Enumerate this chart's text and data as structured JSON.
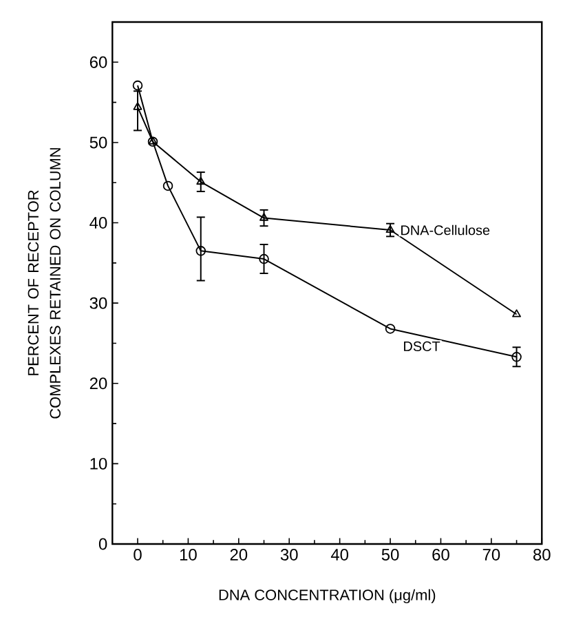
{
  "chart_data": {
    "type": "line",
    "xlabel": "DNA CONCENTRATION (μg/ml)",
    "ylabel": "PERCENT OF RECEPTOR COMPLEXES RETAINED ON COLUMN",
    "xlim": [
      -5,
      80
    ],
    "xticks": [
      0,
      10,
      20,
      30,
      40,
      50,
      60,
      70,
      80
    ],
    "ylim": [
      0,
      65
    ],
    "yticks": [
      0,
      10,
      20,
      30,
      40,
      50,
      60
    ],
    "grid": false,
    "legend": false,
    "line_style": "solid",
    "series": [
      {
        "name": "DNA-Cellulose",
        "color": "#000000",
        "marker": "triangle",
        "x": [
          0,
          3,
          12.5,
          25,
          50,
          75
        ],
        "values": [
          54.4,
          50.1,
          45.1,
          40.6,
          39.1,
          28.6
        ],
        "errors": [
          [
            51.5,
            56.4
          ],
          null,
          1.2,
          1,
          0.8,
          null
        ]
      },
      {
        "name": "DSCT",
        "color": "#000000",
        "marker": "circle",
        "x": [
          0,
          3,
          6,
          12.5,
          25,
          50,
          75
        ],
        "values": [
          57.1,
          50.1,
          44.6,
          36.5,
          35.5,
          26.8,
          23.3
        ],
        "errors": [
          null,
          null,
          null,
          [
            32.8,
            40.7
          ],
          1.8,
          null,
          1.2
        ]
      }
    ]
  }
}
